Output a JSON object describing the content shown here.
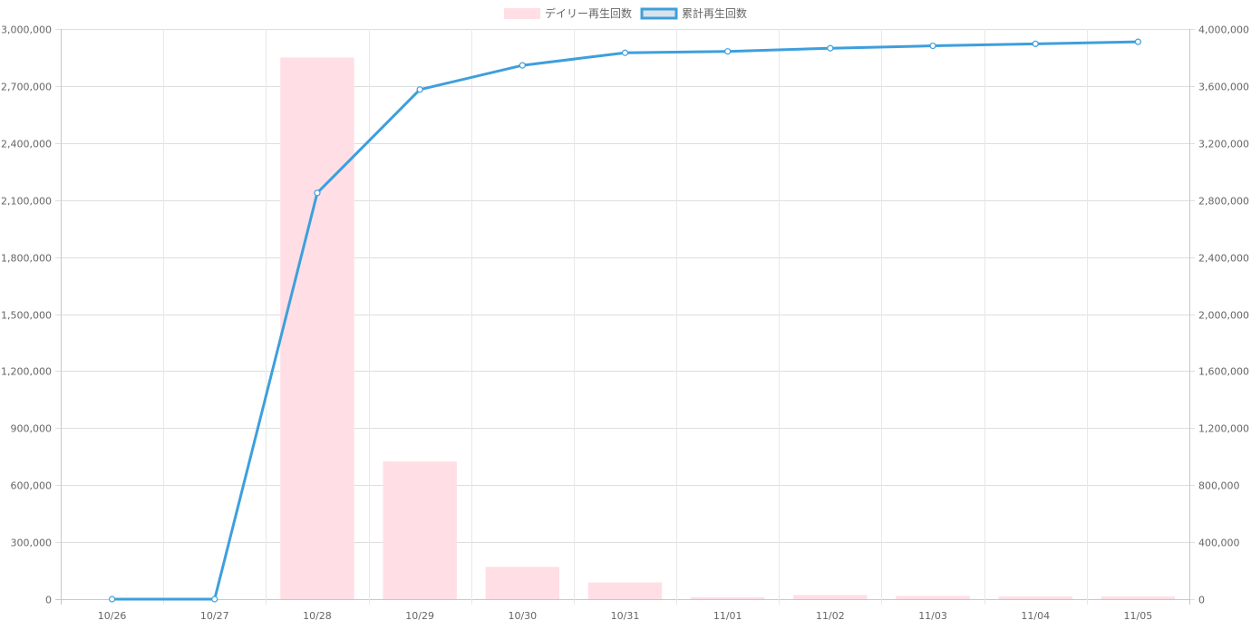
{
  "chart_data": {
    "type": "bar+line",
    "categories": [
      "10/26",
      "10/27",
      "10/28",
      "10/29",
      "10/30",
      "10/31",
      "11/01",
      "11/02",
      "11/03",
      "11/04",
      "11/05"
    ],
    "series": [
      {
        "name": "デイリー再生回数",
        "type": "bar",
        "axis": "left",
        "color": "#ffdfe5",
        "values": [
          0,
          0,
          2850000,
          725000,
          170000,
          88000,
          10000,
          22000,
          17000,
          14000,
          14000
        ]
      },
      {
        "name": "累計再生回数",
        "type": "line",
        "axis": "right",
        "color": "#3e9fdc",
        "values": [
          0,
          0,
          2850000,
          3575000,
          3745000,
          3833000,
          3843000,
          3865000,
          3882000,
          3896000,
          3910000
        ]
      }
    ],
    "y_left": {
      "ylim": [
        0,
        3000000
      ],
      "ticks": [
        0,
        300000,
        600000,
        900000,
        1200000,
        1500000,
        1800000,
        2100000,
        2400000,
        2700000,
        3000000
      ],
      "tick_labels": [
        "0",
        "300,000",
        "600,000",
        "900,000",
        "1,200,000",
        "1,500,000",
        "1,800,000",
        "2,100,000",
        "2,400,000",
        "2,700,000",
        "3,000,000"
      ]
    },
    "y_right": {
      "ylim": [
        0,
        4000000
      ],
      "ticks": [
        0,
        400000,
        800000,
        1200000,
        1600000,
        2000000,
        2400000,
        2800000,
        3200000,
        3600000,
        4000000
      ],
      "tick_labels": [
        "0",
        "400,000",
        "800,000",
        "1,200,000",
        "1,600,000",
        "2,000,000",
        "2,400,000",
        "2,800,000",
        "3,200,000",
        "3,600,000",
        "4,000,000"
      ]
    },
    "grid": true,
    "legend": "top-center"
  }
}
